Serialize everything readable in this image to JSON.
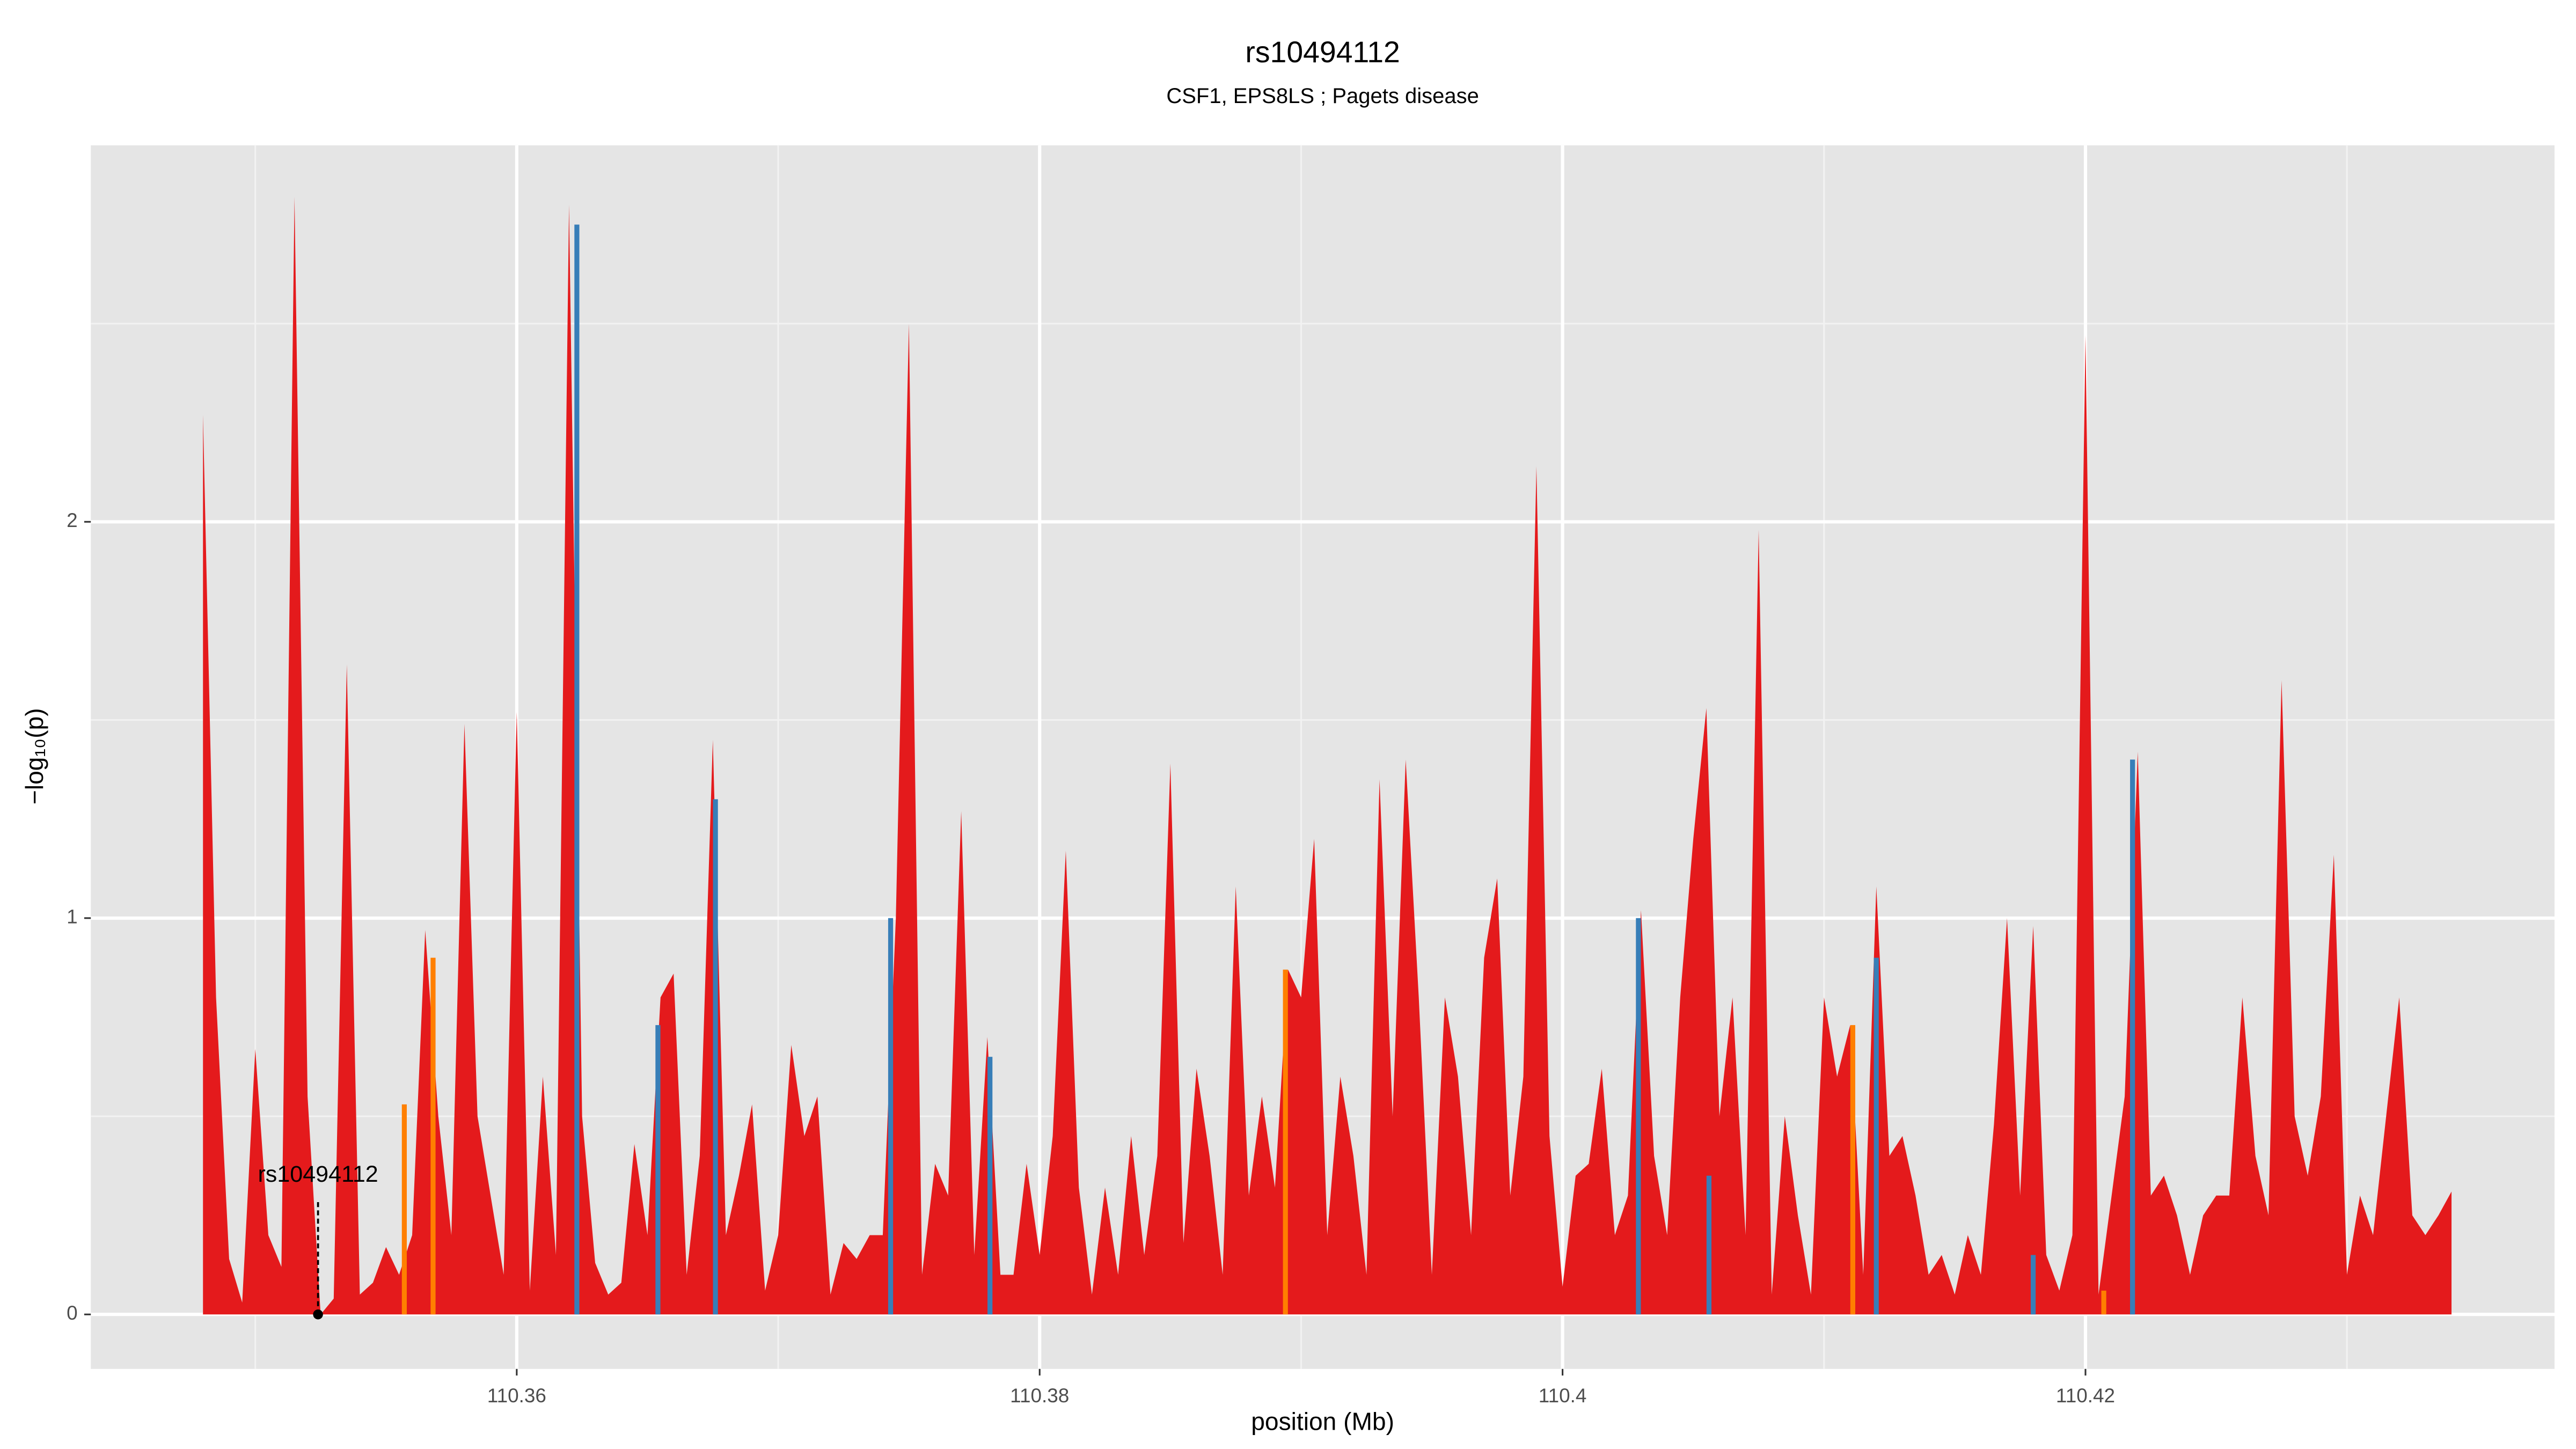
{
  "chart_data": {
    "type": "area",
    "title": "rs10494112",
    "subtitle": "CSF1, EPS8LS ; Pagets disease",
    "x_label": "position (Mb)",
    "y_label": "−log₁₀(p)",
    "xlim": [
      110.34371,
      110.43794
    ],
    "ylim": [
      -0.1375,
      2.95
    ],
    "xticks": [
      110.36,
      110.38,
      110.4,
      110.42
    ],
    "yticks": [
      0,
      1,
      2
    ],
    "xminor": [
      110.35,
      110.37,
      110.39,
      110.41,
      110.43
    ],
    "yminor": [
      0.5,
      1.5,
      2.5
    ],
    "grid": true,
    "series": [
      {
        "color": "#e41a1c",
        "x": [
          110.348,
          110.3485,
          110.349,
          110.3495,
          110.35,
          110.3505,
          110.351,
          110.3515,
          110.352,
          110.3525,
          110.353,
          110.3535,
          110.354,
          110.3545,
          110.355,
          110.3555,
          110.356,
          110.3565,
          110.357,
          110.3575,
          110.358,
          110.3585,
          110.359,
          110.3595,
          110.36,
          110.3605,
          110.361,
          110.3615,
          110.362,
          110.3625,
          110.363,
          110.3635,
          110.364,
          110.3645,
          110.365,
          110.3655,
          110.366,
          110.3665,
          110.367,
          110.3675,
          110.368,
          110.3685,
          110.369,
          110.3695,
          110.37,
          110.3705,
          110.371,
          110.3715,
          110.372,
          110.3725,
          110.373,
          110.3735,
          110.374,
          110.3745,
          110.375,
          110.3755,
          110.376,
          110.3765,
          110.377,
          110.3775,
          110.378,
          110.3785,
          110.379,
          110.3795,
          110.38,
          110.3805,
          110.381,
          110.3815,
          110.382,
          110.3825,
          110.383,
          110.3835,
          110.384,
          110.3845,
          110.385,
          110.3855,
          110.386,
          110.3865,
          110.387,
          110.3875,
          110.388,
          110.3885,
          110.389,
          110.3895,
          110.39,
          110.3905,
          110.391,
          110.3915,
          110.392,
          110.3925,
          110.393,
          110.3935,
          110.394,
          110.3945,
          110.395,
          110.3955,
          110.396,
          110.3965,
          110.397,
          110.3975,
          110.398,
          110.3985,
          110.399,
          110.3995,
          110.4,
          110.4005,
          110.401,
          110.4015,
          110.402,
          110.4025,
          110.403,
          110.4035,
          110.404,
          110.4045,
          110.405,
          110.4055,
          110.406,
          110.4065,
          110.407,
          110.4075,
          110.408,
          110.4085,
          110.409,
          110.4095,
          110.41,
          110.4105,
          110.411,
          110.4115,
          110.412,
          110.4125,
          110.413,
          110.4135,
          110.414,
          110.4145,
          110.415,
          110.4155,
          110.416,
          110.4165,
          110.417,
          110.4175,
          110.418,
          110.4185,
          110.419,
          110.4195,
          110.42,
          110.4205,
          110.421,
          110.4215,
          110.422,
          110.4225,
          110.423,
          110.4235,
          110.424,
          110.4245,
          110.425,
          110.4255,
          110.426,
          110.4265,
          110.427,
          110.4275,
          110.428,
          110.4285,
          110.429,
          110.4295,
          110.43,
          110.4305,
          110.431,
          110.4315,
          110.432,
          110.4325,
          110.433,
          110.4335,
          110.434
        ],
        "values": [
          2.27,
          0.8,
          0.14,
          0.03,
          0.67,
          0.2,
          0.12,
          2.82,
          0.55,
          0,
          0.04,
          1.64,
          0.05,
          0.08,
          0.17,
          0.1,
          0.2,
          0.97,
          0.5,
          0.2,
          1.49,
          0.5,
          0.3,
          0.1,
          1.52,
          0.06,
          0.6,
          0.15,
          2.8,
          0.5,
          0.13,
          0.05,
          0.08,
          0.43,
          0.2,
          0.8,
          0.86,
          0.1,
          0.4,
          1.45,
          0.2,
          0.35,
          0.53,
          0.06,
          0.2,
          0.68,
          0.45,
          0.55,
          0.05,
          0.18,
          0.14,
          0.2,
          0.2,
          1.0,
          2.5,
          0.1,
          0.38,
          0.3,
          1.27,
          0.15,
          0.7,
          0.1,
          0.1,
          0.38,
          0.15,
          0.45,
          1.17,
          0.32,
          0.05,
          0.32,
          0.1,
          0.45,
          0.15,
          0.4,
          1.39,
          0.18,
          0.62,
          0.4,
          0.1,
          1.08,
          0.3,
          0.55,
          0.32,
          0.87,
          0.8,
          1.2,
          0.2,
          0.6,
          0.4,
          0.1,
          1.35,
          0.5,
          1.4,
          0.8,
          0.1,
          0.8,
          0.6,
          0.2,
          0.9,
          1.1,
          0.3,
          0.6,
          2.14,
          0.45,
          0.07,
          0.35,
          0.38,
          0.62,
          0.2,
          0.3,
          1.02,
          0.4,
          0.2,
          0.8,
          1.2,
          1.53,
          0.5,
          0.8,
          0.2,
          1.98,
          0.05,
          0.5,
          0.25,
          0.05,
          0.8,
          0.6,
          0.73,
          0.1,
          1.08,
          0.4,
          0.45,
          0.3,
          0.1,
          0.15,
          0.05,
          0.2,
          0.1,
          0.48,
          1.0,
          0.3,
          0.98,
          0.15,
          0.06,
          0.2,
          2.47,
          0.05,
          0.3,
          0.55,
          1.42,
          0.3,
          0.35,
          0.25,
          0.1,
          0.25,
          0.3,
          0.3,
          0.8,
          0.4,
          0.25,
          1.6,
          0.5,
          0.35,
          0.55,
          1.16,
          0.1,
          0.3,
          0.2,
          0.5,
          0.8,
          0.25,
          0.2,
          0.25,
          0.31
        ]
      },
      {
        "color": "#377eb8",
        "x": [
          110.3623,
          110.3654,
          110.3676,
          110.3743,
          110.3781,
          110.4029,
          110.4056,
          110.412,
          110.418,
          110.4218
        ],
        "values": [
          2.75,
          0.73,
          1.3,
          1.0,
          0.65,
          1.0,
          0.35,
          0.9,
          0.15,
          1.4
        ]
      },
      {
        "color": "#ff7f00",
        "x": [
          110.3557,
          110.3568,
          110.3894,
          110.4111,
          110.4207
        ],
        "values": [
          0.53,
          0.9,
          0.87,
          0.73,
          0.06
        ]
      }
    ],
    "annotation": {
      "text": "rs10494112",
      "x": 110.3524,
      "y": 0
    }
  }
}
